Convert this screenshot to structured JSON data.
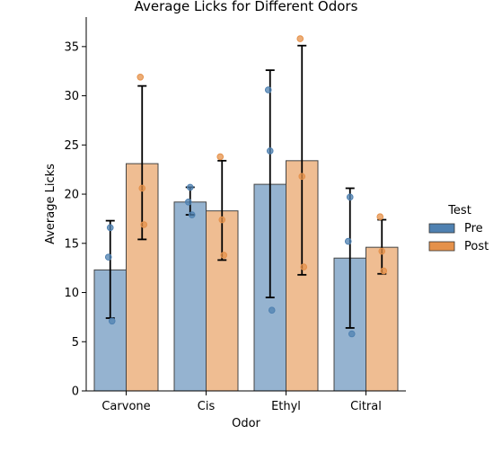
{
  "chart_data": {
    "type": "bar",
    "title": "Average Licks for Different Odors",
    "xlabel": "Odor",
    "ylabel": "Average Licks",
    "categories": [
      "Carvone",
      "Cis",
      "Ethyl",
      "Citral"
    ],
    "ylim": [
      0,
      38
    ],
    "yticks": [
      0,
      5,
      10,
      15,
      20,
      25,
      30,
      35
    ],
    "grid": false,
    "legend": {
      "title": "Test",
      "placement": "right"
    },
    "series": [
      {
        "name": "Pre",
        "color": "#4f81b1",
        "values": [
          12.3,
          19.2,
          21.0,
          13.5
        ],
        "error_low": [
          7.4,
          17.9,
          9.5,
          6.4
        ],
        "error_high": [
          17.3,
          20.7,
          32.6,
          20.6
        ],
        "points": [
          [
            13.6,
            16.6,
            7.1
          ],
          [
            19.2,
            20.7,
            17.9
          ],
          [
            30.6,
            24.4,
            8.2
          ],
          [
            15.2,
            19.7,
            5.8
          ]
        ]
      },
      {
        "name": "Post",
        "color": "#e5914a",
        "values": [
          23.1,
          18.3,
          23.4,
          14.6
        ],
        "error_low": [
          15.4,
          13.3,
          11.8,
          11.9
        ],
        "error_high": [
          31.0,
          23.4,
          35.1,
          17.4
        ],
        "points": [
          [
            31.9,
            20.6,
            16.9
          ],
          [
            23.8,
            17.4,
            13.8
          ],
          [
            35.8,
            21.8,
            12.6
          ],
          [
            17.7,
            14.2,
            12.2
          ]
        ]
      }
    ]
  }
}
